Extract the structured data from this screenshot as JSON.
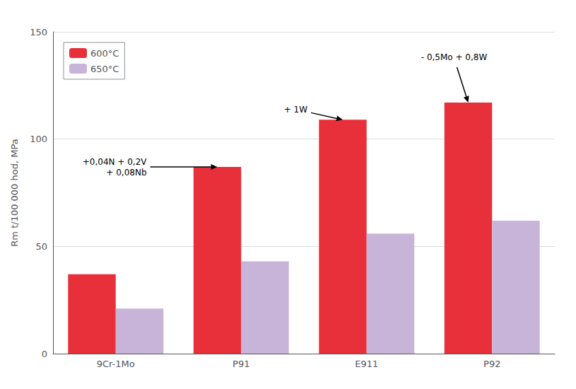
{
  "chart_data": {
    "type": "bar",
    "categories": [
      "9Cr-1Mo",
      "P91",
      "E911",
      "P92"
    ],
    "series": [
      {
        "name": "600°C",
        "color": "#e8303a",
        "values": [
          37,
          87,
          109,
          117
        ]
      },
      {
        "name": "650°C",
        "color": "#c8b4d8",
        "values": [
          21,
          43,
          56,
          62
        ]
      }
    ],
    "ylabel": "Rm t/100 000 hod, MPa",
    "ylim": [
      0,
      150
    ],
    "yticks": [
      0,
      50,
      100,
      150
    ],
    "grid": true,
    "legend": "upper left",
    "annotations": [
      {
        "text": "+0,04N + 0,2V\n+ 0,08Nb",
        "x": "P91",
        "y": 87
      },
      {
        "text": "+ 1W",
        "x": "E911",
        "y": 109
      },
      {
        "text": "- 0,5Mo + 0,8W",
        "x": "P92",
        "y": 117
      }
    ]
  }
}
